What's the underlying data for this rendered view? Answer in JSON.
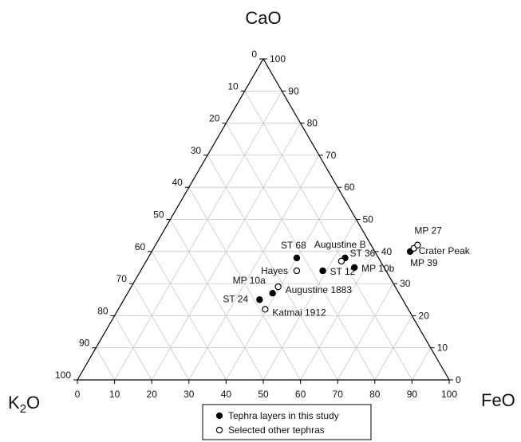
{
  "chart_data": {
    "type": "scatter",
    "subtype": "ternary",
    "title": "",
    "apex_labels": {
      "top": "CaO",
      "left_html": "K<tspan dy='5' font-size='15'>2</tspan><tspan dy='-5'>O</tspan>",
      "right": "FeO"
    },
    "apex_text": {
      "top": "CaO",
      "left": "K2O",
      "right": "FeO"
    },
    "axes": {
      "bottom_ticks": [
        "0",
        "10",
        "20",
        "30",
        "40",
        "50",
        "60",
        "70",
        "80",
        "90",
        "100"
      ],
      "left_ticks": [
        "0",
        "10",
        "20",
        "30",
        "40",
        "50",
        "60",
        "70",
        "80",
        "90",
        "100"
      ],
      "right_ticks": [
        "0",
        "10",
        "20",
        "30",
        "40",
        "50",
        "60",
        "70",
        "80",
        "90",
        "100"
      ]
    },
    "grid": true,
    "legend": {
      "placement": "bottom-center",
      "entries": [
        {
          "name": "Tephra layers in this study",
          "marker": "filled"
        },
        {
          "name": "Selected other tephras",
          "marker": "open"
        }
      ]
    },
    "series": [
      {
        "name": "Tephra layers in this study",
        "marker": "filled",
        "points": [
          {
            "label": "ST 68",
            "FeO": 40,
            "CaO": 38
          },
          {
            "label": "ST 36",
            "FeO": 53,
            "CaO": 38
          },
          {
            "label": "ST 12",
            "FeO": 49,
            "CaO": 34
          },
          {
            "label": "MP 10b",
            "FeO": 57,
            "CaO": 35
          },
          {
            "label": "MP 39",
            "FeO": 69.5,
            "CaO": 40
          },
          {
            "label": "MP 10a",
            "FeO": 39,
            "CaO": 27
          },
          {
            "label": "ST 24",
            "FeO": 36.5,
            "CaO": 25
          }
        ]
      },
      {
        "name": "Selected other tephras",
        "marker": "open",
        "points": [
          {
            "label": "Augustine B",
            "FeO": 52.5,
            "CaO": 37
          },
          {
            "label": "Crater Peak",
            "FeO": 70,
            "CaO": 41
          },
          {
            "label": "MP 27",
            "FeO": 70.5,
            "CaO": 42
          },
          {
            "label": "Hayes",
            "FeO": 42,
            "CaO": 34
          },
          {
            "label": "Augustine 1883",
            "FeO": 39.5,
            "CaO": 29
          },
          {
            "label": "Katmai 1912",
            "FeO": 39.5,
            "CaO": 22
          }
        ]
      }
    ]
  }
}
